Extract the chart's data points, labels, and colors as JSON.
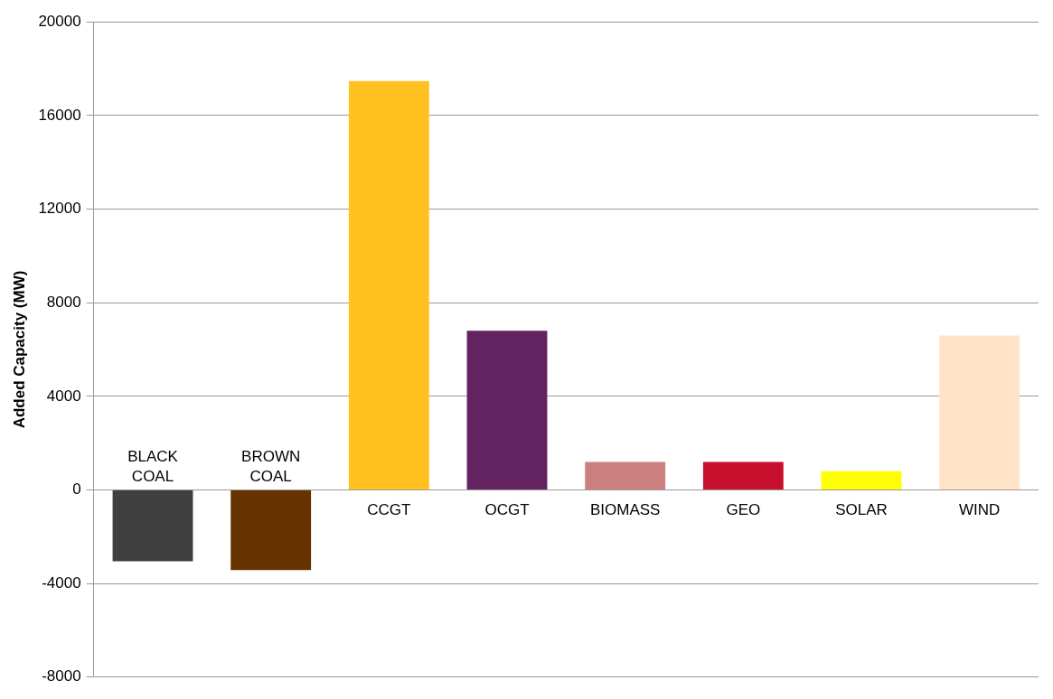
{
  "chart_data": {
    "type": "bar",
    "ylabel": "Added Capacity (MW)",
    "categories": [
      "BLACK COAL",
      "BROWN COAL",
      "CCGT",
      "OCGT",
      "BIOMASS",
      "GEO",
      "SOLAR",
      "WIND"
    ],
    "values": [
      -3050,
      -3430,
      17470,
      6800,
      1200,
      1200,
      800,
      6600
    ],
    "colors": [
      "#404040",
      "#663300",
      "#ffc020",
      "#632360",
      "#cc7f7f",
      "#c8102e",
      "#ffff00",
      "#ffe4c8"
    ],
    "ylim": [
      -8000,
      20000
    ],
    "yticks": [
      -8000,
      -4000,
      0,
      4000,
      8000,
      12000,
      16000,
      20000
    ],
    "grid": "y",
    "legend": false
  }
}
